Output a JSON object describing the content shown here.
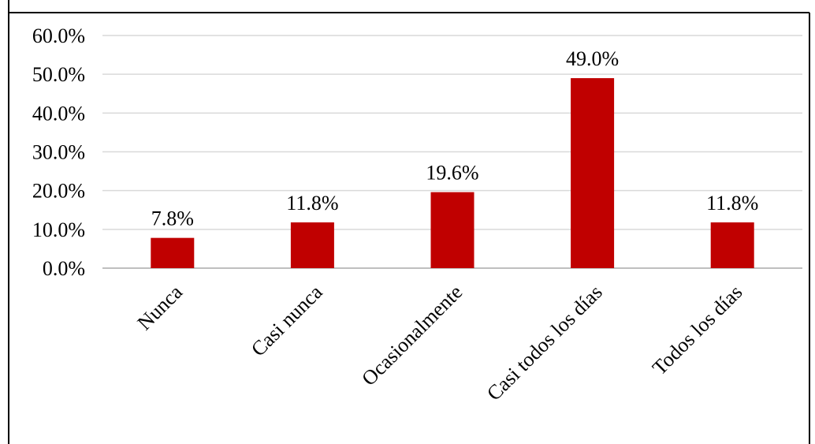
{
  "chart_data": {
    "type": "bar",
    "categories": [
      "Nunca",
      "Casi nunca",
      "Ocasionalmente",
      "Casi todos los días",
      "Todos los días"
    ],
    "values": [
      7.8,
      11.8,
      19.6,
      49.0,
      11.8
    ],
    "data_labels": [
      "7.8%",
      "11.8%",
      "19.6%",
      "49.0%",
      "11.8%"
    ],
    "ylim": [
      0,
      60
    ],
    "yticks": [
      0,
      10,
      20,
      30,
      40,
      50,
      60
    ],
    "ytick_labels": [
      "0.0%",
      "10.0%",
      "20.0%",
      "30.0%",
      "40.0%",
      "50.0%",
      "60.0%"
    ],
    "grid": true,
    "bar_color": "#c00000",
    "grid_color": "#d9d9d9",
    "axis_color": "#bfbfbf",
    "frame_color": "#000000"
  }
}
